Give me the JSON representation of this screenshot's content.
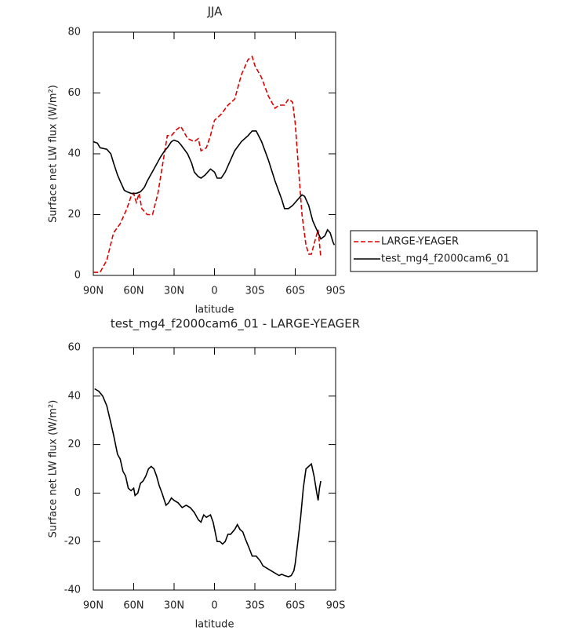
{
  "chart_data": [
    {
      "type": "line",
      "title": "JJA",
      "xlabel": "latitude",
      "ylabel": "Surface net LW flux (W/m²)",
      "xlim": [
        90,
        -90
      ],
      "ylim": [
        0,
        80
      ],
      "xticks": [
        {
          "value": 90,
          "label": "90N"
        },
        {
          "value": 60,
          "label": "60N"
        },
        {
          "value": 30,
          "label": "30N"
        },
        0,
        {
          "value": -30,
          "label": "30S"
        },
        {
          "value": -60,
          "label": "60S"
        },
        {
          "value": -90,
          "label": "90S"
        }
      ],
      "yticks": [
        0,
        20,
        40,
        60,
        80
      ],
      "legend": "right",
      "series": [
        {
          "name": "LARGE-YEAGER",
          "color": "#e00000",
          "dash": true,
          "x": [
            90,
            85,
            80,
            75,
            70,
            65,
            62,
            60,
            58,
            56,
            54,
            50,
            46,
            42,
            38,
            35,
            32,
            28,
            25,
            20,
            15,
            12,
            10,
            6,
            3,
            0,
            -5,
            -10,
            -15,
            -20,
            -25,
            -28,
            -30,
            -35,
            -40,
            -45,
            -48,
            -52,
            -55,
            -58,
            -60,
            -62,
            -65,
            -68,
            -70,
            -72,
            -75,
            -77,
            -79
          ],
          "values": [
            1,
            1,
            5,
            14,
            17,
            22,
            26,
            27,
            24,
            27,
            22,
            20,
            20,
            27,
            38,
            46,
            46,
            48,
            49,
            45,
            44,
            45,
            41,
            42,
            46,
            51,
            53,
            56,
            58,
            66,
            71,
            72,
            69,
            65,
            59,
            55,
            56,
            56,
            58,
            57,
            50,
            38,
            20,
            10,
            7,
            7,
            12,
            15,
            6
          ]
        },
        {
          "name": "test_mg4_f2000cam6_01",
          "color": "#000000",
          "dash": false,
          "x": [
            90,
            87,
            85,
            80,
            77,
            75,
            72,
            70,
            67,
            65,
            62,
            60,
            58,
            55,
            52,
            50,
            45,
            40,
            37,
            35,
            32,
            30,
            27,
            25,
            20,
            17,
            15,
            12,
            10,
            7,
            5,
            3,
            0,
            -2,
            -5,
            -8,
            -12,
            -15,
            -20,
            -25,
            -28,
            -31,
            -35,
            -40,
            -45,
            -50,
            -52,
            -55,
            -58,
            -62,
            -65,
            -67,
            -70,
            -73,
            -76,
            -79,
            -82,
            -84,
            -86,
            -88,
            -89
          ],
          "values": [
            44,
            43.5,
            42,
            41.5,
            40,
            37,
            33,
            31,
            28,
            27.5,
            27,
            27,
            27,
            27.5,
            29,
            31,
            35,
            39,
            41,
            42,
            44,
            44.5,
            44,
            43,
            40,
            37,
            34,
            32.5,
            32,
            33,
            34,
            35,
            34,
            32,
            32,
            34,
            38,
            41,
            44,
            46,
            47.5,
            47.5,
            44,
            38,
            31,
            25,
            22,
            22,
            23,
            25,
            26.5,
            26,
            23,
            18,
            15,
            12,
            13,
            15,
            14,
            11,
            10
          ]
        }
      ]
    },
    {
      "type": "line",
      "title": "test_mg4_f2000cam6_01 - LARGE-YEAGER",
      "xlabel": "latitude",
      "ylabel": "Surface net LW flux (W/m²)",
      "xlim": [
        90,
        -90
      ],
      "ylim": [
        -40,
        60
      ],
      "xticks": [
        {
          "value": 90,
          "label": "90N"
        },
        {
          "value": 60,
          "label": "60N"
        },
        {
          "value": 30,
          "label": "30N"
        },
        0,
        {
          "value": -30,
          "label": "30S"
        },
        {
          "value": -60,
          "label": "60S"
        },
        {
          "value": -90,
          "label": "90S"
        }
      ],
      "yticks": [
        -40,
        -20,
        0,
        20,
        40,
        60
      ],
      "series": [
        {
          "color": "#000000",
          "dash": false,
          "x": [
            89,
            86,
            83,
            80,
            77,
            75,
            72,
            70,
            68,
            66,
            64,
            62,
            60,
            59,
            57,
            55,
            53,
            51,
            49,
            47,
            45,
            43,
            41,
            39,
            36,
            34,
            32,
            30,
            27,
            24,
            21,
            18,
            15,
            12,
            10,
            8,
            6,
            3,
            1,
            -2,
            -4,
            -6,
            -8,
            -10,
            -12,
            -15,
            -17,
            -19,
            -21,
            -23,
            -26,
            -28,
            -31,
            -34,
            -36,
            -39,
            -42,
            -45,
            -48,
            -50,
            -52,
            -55,
            -57,
            -59,
            -60,
            -62,
            -64,
            -66,
            -68,
            -70,
            -72,
            -74,
            -76,
            -77,
            -78,
            -79
          ],
          "values": [
            43,
            42,
            40,
            36,
            29,
            24,
            16,
            14,
            9,
            7,
            2,
            1,
            2,
            -1,
            0,
            4,
            5,
            7,
            10,
            11,
            10,
            7,
            3,
            0,
            -5,
            -4,
            -2,
            -3,
            -4,
            -6,
            -5,
            -6,
            -8,
            -11,
            -12,
            -9,
            -10,
            -9,
            -12,
            -20,
            -20,
            -21,
            -20,
            -17,
            -17,
            -15,
            -13,
            -15,
            -16,
            -19,
            -23,
            -26,
            -26,
            -28,
            -30,
            -31,
            -32,
            -33,
            -34,
            -33.5,
            -34,
            -34.5,
            -34,
            -32,
            -29,
            -20,
            -10,
            2,
            10,
            11,
            12,
            7,
            0,
            -3,
            2,
            5
          ]
        }
      ]
    }
  ]
}
